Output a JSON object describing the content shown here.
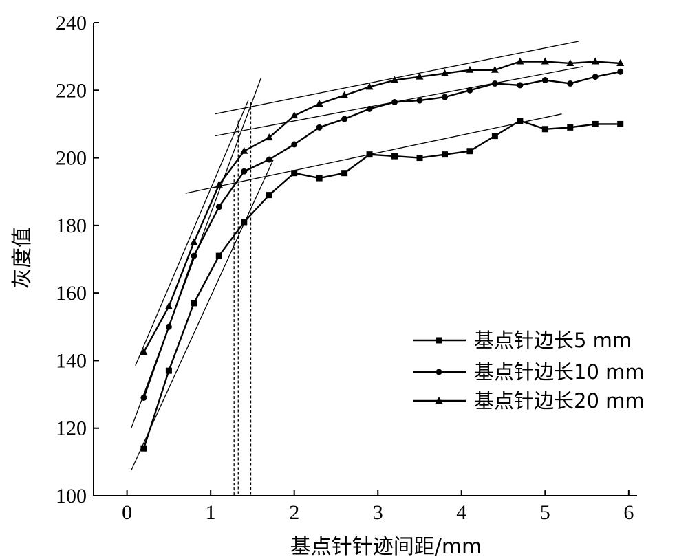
{
  "chart_data": {
    "type": "line",
    "xlabel": "基点针针迹间距/mm",
    "ylabel": "灰度值",
    "xlim": [
      -0.4,
      6.1
    ],
    "ylim": [
      100,
      240
    ],
    "x_ticks": [
      0,
      1,
      2,
      3,
      4,
      5,
      6
    ],
    "y_ticks": [
      100,
      120,
      140,
      160,
      180,
      200,
      220,
      240
    ],
    "grid": false,
    "legend_position": "right-middle",
    "series": [
      {
        "name": "基点针边长5 mm",
        "marker": "square",
        "x": [
          0.2,
          0.5,
          0.8,
          1.1,
          1.4,
          1.7,
          2.0,
          2.3,
          2.6,
          2.9,
          3.2,
          3.5,
          3.8,
          4.1,
          4.4,
          4.7,
          5.0,
          5.3,
          5.6,
          5.9
        ],
        "y": [
          114,
          137,
          157,
          171,
          181,
          189,
          195.5,
          194,
          195.5,
          201,
          200.5,
          200,
          201,
          202,
          206.5,
          211,
          208.5,
          209,
          210,
          210
        ]
      },
      {
        "name": "基点针边长10 mm",
        "marker": "circle",
        "x": [
          0.2,
          0.5,
          0.8,
          1.1,
          1.4,
          1.7,
          2.0,
          2.3,
          2.6,
          2.9,
          3.2,
          3.5,
          3.8,
          4.1,
          4.4,
          4.7,
          5.0,
          5.3,
          5.6,
          5.9
        ],
        "y": [
          129,
          150,
          171,
          185.5,
          196,
          199.5,
          204,
          209,
          211.5,
          214.5,
          216.5,
          217,
          218,
          220,
          222,
          221.5,
          223,
          222,
          224,
          225.5
        ]
      },
      {
        "name": "基点针边长20 mm",
        "marker": "triangle",
        "x": [
          0.2,
          0.5,
          0.8,
          1.1,
          1.4,
          1.7,
          2.0,
          2.3,
          2.6,
          2.9,
          3.2,
          3.5,
          3.8,
          4.1,
          4.4,
          4.7,
          5.0,
          5.3,
          5.6,
          5.9
        ],
        "y": [
          142.5,
          156,
          175,
          192,
          202,
          206,
          212.5,
          216,
          218.5,
          221,
          223,
          224,
          225,
          226,
          226,
          228.5,
          228.5,
          228,
          228.5,
          228
        ]
      }
    ],
    "fit_lines": [
      {
        "series": "基点针边长5 mm",
        "x": [
          0.05,
          1.75
        ],
        "y": [
          107.5,
          199.5
        ]
      },
      {
        "series": "基点针边长5 mm",
        "x": [
          0.7,
          5.2
        ],
        "y": [
          189.5,
          213
        ]
      },
      {
        "series": "基点针边长10 mm",
        "x": [
          0.05,
          1.6
        ],
        "y": [
          120,
          223.5
        ]
      },
      {
        "series": "基点针边长10 mm",
        "x": [
          1.05,
          5.45
        ],
        "y": [
          206.5,
          227
        ]
      },
      {
        "series": "基点针边长20 mm",
        "x": [
          0.1,
          1.45
        ],
        "y": [
          138.5,
          217
        ]
      },
      {
        "series": "基点针边长20 mm",
        "x": [
          1.05,
          5.4
        ],
        "y": [
          213,
          234.5
        ]
      }
    ],
    "reference_lines": [
      {
        "x": 1.28,
        "y_end": 195
      },
      {
        "x": 1.33,
        "y_end": 211
      },
      {
        "x": 1.48,
        "y_end": 216.5
      }
    ]
  }
}
